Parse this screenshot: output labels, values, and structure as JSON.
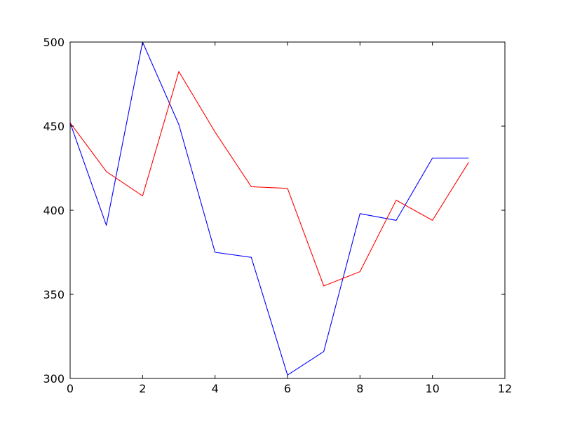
{
  "chart_data": {
    "type": "line",
    "title": "",
    "xlabel": "",
    "ylabel": "",
    "xlim": [
      0,
      12
    ],
    "ylim": [
      300,
      500
    ],
    "xticks": [
      0,
      2,
      4,
      6,
      8,
      10,
      12
    ],
    "yticks": [
      300,
      350,
      400,
      450,
      500
    ],
    "grid": false,
    "legend": "none",
    "x": [
      0,
      1,
      2,
      3,
      4,
      5,
      6,
      7,
      8,
      9,
      10,
      11
    ],
    "series": [
      {
        "color": "#0000ff",
        "values": [
          452,
          391,
          500,
          451,
          375,
          372,
          302,
          316,
          398,
          394,
          431,
          431
        ]
      },
      {
        "color": "#ff0000",
        "values": [
          452,
          423,
          408.5,
          482.5,
          446.5,
          414,
          413,
          355,
          363.5,
          406,
          394,
          428.5
        ]
      }
    ]
  }
}
